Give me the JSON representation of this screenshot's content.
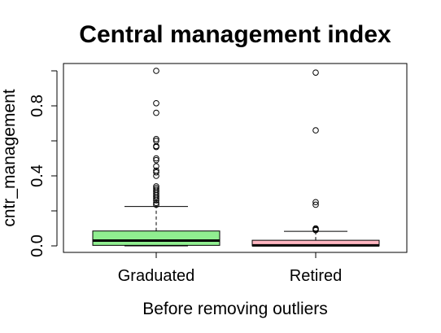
{
  "chart_data": {
    "type": "boxplot",
    "title": "Central management index",
    "xlabel": "Before removing outliers",
    "ylabel": "cntr_management",
    "ylim": [
      -0.05,
      1.02
    ],
    "y_ticks": [
      "0.0",
      "0.4",
      "0.8"
    ],
    "y_tick_values": [
      0.0,
      0.4,
      0.8
    ],
    "grid": false,
    "categories": [
      "Graduated",
      "Retired"
    ],
    "series": [
      {
        "q1": 0.003,
        "median": 0.03,
        "q3": 0.085,
        "whisker_low": 0.0,
        "whisker_high": 0.225,
        "color": "#90EE90",
        "outliers": [
          1.0,
          0.815,
          0.76,
          0.61,
          0.6,
          0.57,
          0.565,
          0.5,
          0.49,
          0.455,
          0.43,
          0.42,
          0.4,
          0.34,
          0.33,
          0.32,
          0.31,
          0.3,
          0.29,
          0.28,
          0.27,
          0.26,
          0.245,
          0.235
        ]
      },
      {
        "q1": 0.0,
        "median": 0.003,
        "q3": 0.032,
        "whisker_low": 0.0,
        "whisker_high": 0.083,
        "color": "#FFB6C1",
        "outliers": [
          0.99,
          0.66,
          0.25,
          0.235,
          0.1,
          0.095,
          0.09
        ]
      }
    ]
  }
}
